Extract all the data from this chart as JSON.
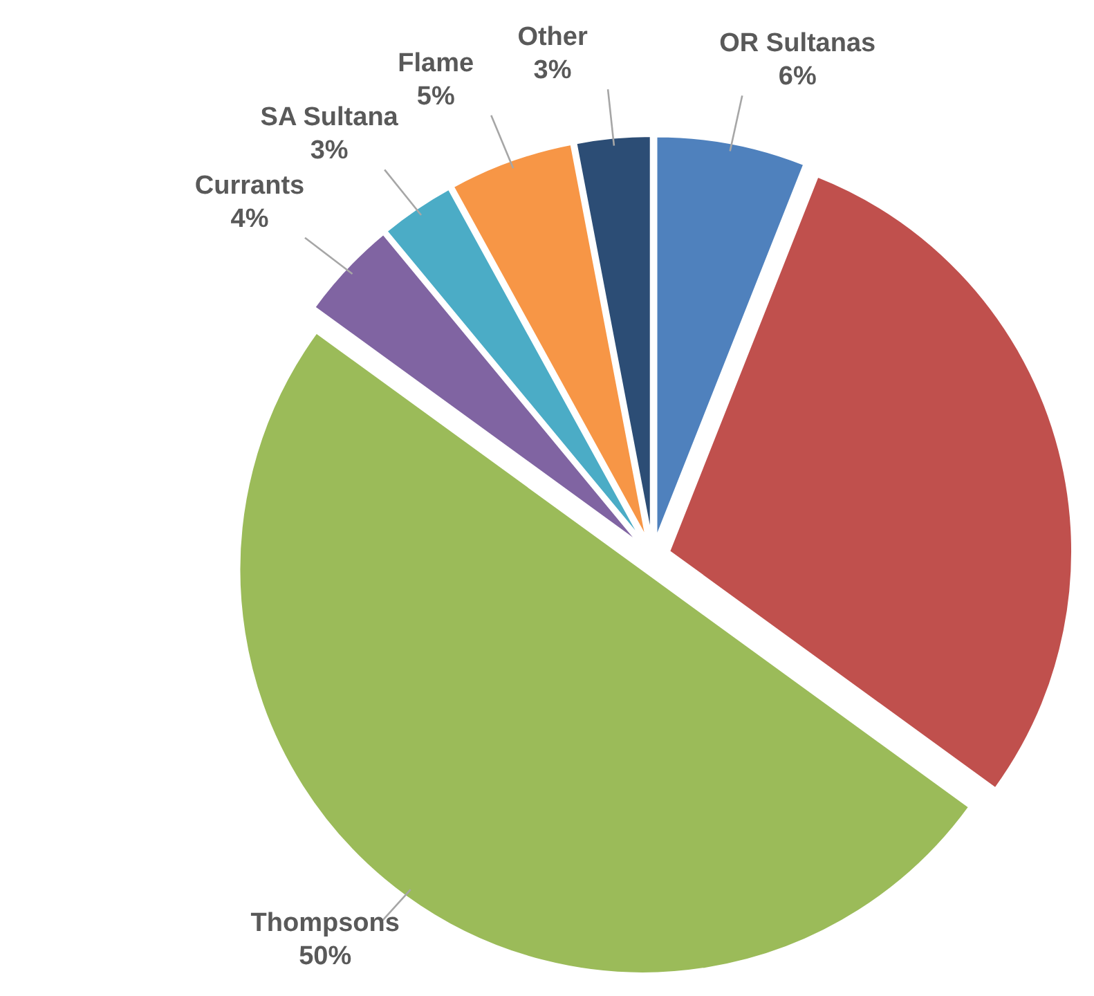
{
  "chart_data": {
    "type": "pie",
    "categories": [
      "OR Sultanas",
      null,
      "Thompsons",
      "Currants",
      "SA Sultana",
      "Flame",
      "Other"
    ],
    "values": [
      6,
      29,
      50,
      4,
      3,
      5,
      3
    ],
    "value_labels": [
      "6%",
      null,
      "50%",
      "4%",
      "3%",
      "5%",
      "3%"
    ],
    "colors": [
      "#4f81bd",
      "#c0504d",
      "#9bbb59",
      "#8064a2",
      "#4bacc6",
      "#f79646",
      "#2c4d75"
    ]
  }
}
